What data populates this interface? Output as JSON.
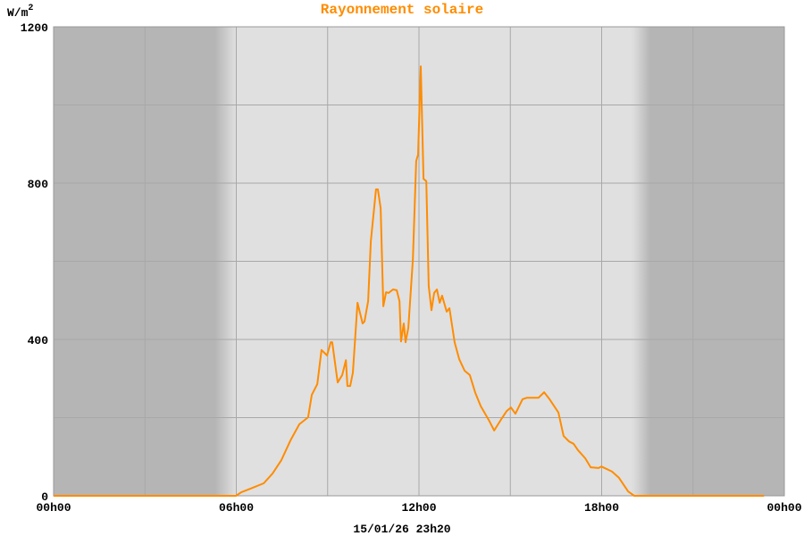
{
  "chart_data": {
    "type": "line",
    "title": "Rayonnement solaire",
    "ylabel": "W/m",
    "ylabel_superscript": "2",
    "xlabel": "15/01/26 23h20",
    "xlim_hours": [
      0,
      24
    ],
    "ylim": [
      0,
      1200
    ],
    "x_ticks": [
      "00h00",
      "06h00",
      "12h00",
      "18h00",
      "00h00"
    ],
    "y_ticks": [
      "0",
      "400",
      "800",
      "1200"
    ],
    "grid": true,
    "colors": {
      "line": "#ff8c00",
      "title": "#ff8c00",
      "day_bg": "#e0e0e0",
      "night_bg": "#b5b5b5",
      "grid": "#a8a8a8"
    },
    "series": [
      {
        "x_hours": [
          0,
          5.99,
          6.16,
          6.46,
          6.9,
          7.19,
          7.48,
          7.78,
          8.07,
          8.36,
          8.48,
          8.66,
          8.8,
          8.98,
          9.1,
          9.15,
          9.33,
          9.48,
          9.6,
          9.65,
          9.74,
          9.83,
          9.98,
          10.15,
          10.21,
          10.33,
          10.42,
          10.59,
          10.65,
          10.74,
          10.83,
          10.92,
          11.0,
          11.15,
          11.27,
          11.36,
          11.41,
          11.5,
          11.56,
          11.65,
          11.8,
          11.91,
          11.97,
          12.06,
          12.15,
          12.24,
          12.32,
          12.41,
          12.5,
          12.59,
          12.68,
          12.76,
          12.91,
          13.0,
          13.17,
          13.32,
          13.5,
          13.67,
          13.85,
          14.03,
          14.29,
          14.47,
          14.73,
          14.88,
          15.02,
          15.17,
          15.4,
          15.55,
          15.93,
          16.11,
          16.29,
          16.58,
          16.75,
          16.93,
          17.08,
          17.22,
          17.46,
          17.64,
          17.9,
          17.99,
          18.34,
          18.57,
          18.87,
          19.07,
          23.33
        ],
        "values": [
          0,
          0,
          9,
          18,
          32,
          57,
          91,
          142,
          183,
          201,
          258,
          286,
          373,
          359,
          393,
          393,
          290,
          309,
          347,
          281,
          281,
          315,
          494,
          441,
          446,
          498,
          651,
          784,
          784,
          736,
          485,
          521,
          519,
          528,
          526,
          498,
          395,
          441,
          393,
          430,
          606,
          857,
          873,
          1099,
          811,
          805,
          537,
          475,
          519,
          528,
          494,
          512,
          471,
          480,
          393,
          350,
          320,
          309,
          263,
          229,
          194,
          167,
          199,
          217,
          226,
          210,
          247,
          251,
          251,
          265,
          247,
          213,
          153,
          139,
          133,
          117,
          96,
          73,
          71,
          75,
          62,
          46,
          11,
          0,
          0
        ]
      }
    ]
  }
}
